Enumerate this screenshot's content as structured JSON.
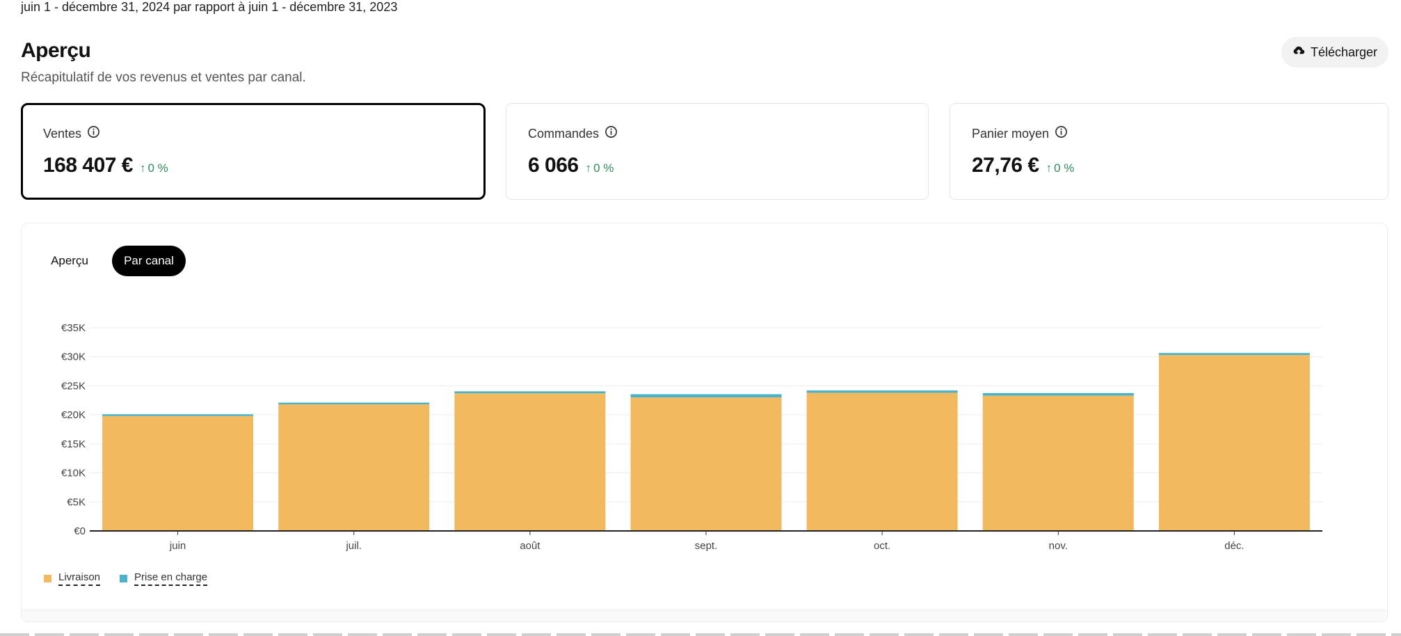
{
  "header": {
    "date_range": "juin 1 - décembre 31, 2024 par rapport à juin 1 - décembre 31, 2023",
    "title": "Aperçu",
    "subtitle": "Récapitulatif de vos revenus et ventes par canal.",
    "download_label": "Télécharger"
  },
  "kpis": [
    {
      "label": "Ventes",
      "value": "168 407 €",
      "delta": "0 %"
    },
    {
      "label": "Commandes",
      "value": "6 066",
      "delta": "0 %"
    },
    {
      "label": "Panier moyen",
      "value": "27,76 €",
      "delta": "0 %"
    }
  ],
  "tabs": [
    {
      "label": "Aperçu",
      "active": false
    },
    {
      "label": "Par canal",
      "active": true
    }
  ],
  "colors": {
    "delivery": "#f2b95f",
    "pickup": "#4ab3c9",
    "positive": "#2e8b57"
  },
  "chart_data": {
    "type": "bar",
    "stacked": true,
    "categories": [
      "juin",
      "juil.",
      "août",
      "sept.",
      "oct.",
      "nov.",
      "déc."
    ],
    "series": [
      {
        "name": "Livraison",
        "values": [
          19800,
          21800,
          23700,
          23000,
          23800,
          23300,
          30300
        ]
      },
      {
        "name": "Prise en charge",
        "values": [
          300,
          300,
          350,
          550,
          400,
          450,
          350
        ]
      }
    ],
    "y_ticks": [
      "€0",
      "€5K",
      "€10K",
      "€15K",
      "€20K",
      "€25K",
      "€30K",
      "€35K"
    ],
    "ylim": [
      0,
      35000
    ],
    "grid": true,
    "legend": "bottom-left"
  }
}
